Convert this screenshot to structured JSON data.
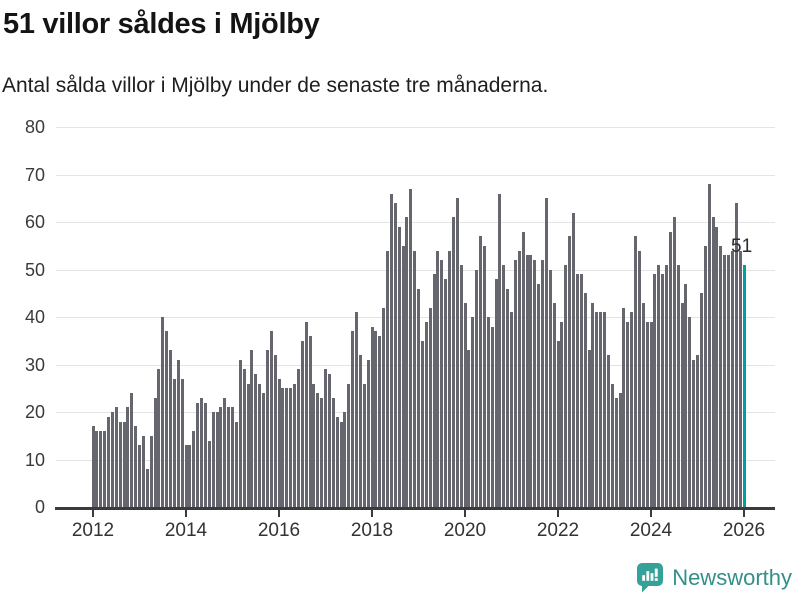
{
  "header": {
    "title": "51 villor såldes i Mjölby",
    "subtitle": "Antal sålda villor i Mjölby under de senaste tre månaderna."
  },
  "chart_data": {
    "type": "bar",
    "title": "51 villor såldes i Mjölby",
    "subtitle": "Antal sålda villor i Mjölby under de senaste tre månaderna.",
    "interval": "monthly",
    "x_start": "2012-01",
    "x_end": "2026-01",
    "x_tick_labels": [
      "2012",
      "2014",
      "2016",
      "2018",
      "2020",
      "2022",
      "2024",
      "2026"
    ],
    "y_ticks": [
      0,
      10,
      20,
      30,
      40,
      50,
      60,
      70,
      80
    ],
    "ylim": [
      0,
      80
    ],
    "grid": true,
    "legend": false,
    "bar_color": "#66666e",
    "highlight": {
      "index": 168,
      "value": 51,
      "label": "51",
      "color": "#00a0a2"
    },
    "values": [
      17,
      16,
      16,
      16,
      19,
      20,
      21,
      18,
      18,
      21,
      24,
      17,
      13,
      15,
      8,
      15,
      23,
      29,
      40,
      37,
      33,
      27,
      31,
      27,
      13,
      13,
      16,
      22,
      23,
      22,
      14,
      20,
      20,
      21,
      23,
      21,
      21,
      18,
      31,
      29,
      26,
      33,
      28,
      26,
      24,
      33,
      37,
      32,
      27,
      25,
      25,
      25,
      26,
      29,
      35,
      39,
      36,
      26,
      24,
      23,
      29,
      28,
      23,
      19,
      18,
      20,
      26,
      37,
      41,
      32,
      26,
      31,
      38,
      37,
      36,
      42,
      54,
      66,
      64,
      59,
      55,
      61,
      67,
      54,
      46,
      35,
      39,
      42,
      49,
      54,
      52,
      48,
      54,
      61,
      65,
      51,
      43,
      33,
      40,
      50,
      57,
      55,
      40,
      38,
      48,
      66,
      51,
      46,
      41,
      52,
      54,
      58,
      53,
      53,
      52,
      47,
      52,
      65,
      50,
      43,
      35,
      39,
      51,
      57,
      62,
      49,
      49,
      45,
      33,
      43,
      41,
      41,
      41,
      32,
      26,
      23,
      24,
      42,
      39,
      41,
      57,
      54,
      43,
      39,
      39,
      49,
      51,
      49,
      51,
      58,
      61,
      51,
      43,
      47,
      40,
      31,
      32,
      45,
      55,
      68,
      61,
      59,
      55,
      53,
      53,
      54,
      64,
      54,
      51
    ]
  },
  "footer": {
    "brand": "Newsworthy",
    "logo_icon": "newsworthy-speech-bubble-chart-icon",
    "brand_color": "#338f88",
    "logo_color": "#35a29a"
  }
}
